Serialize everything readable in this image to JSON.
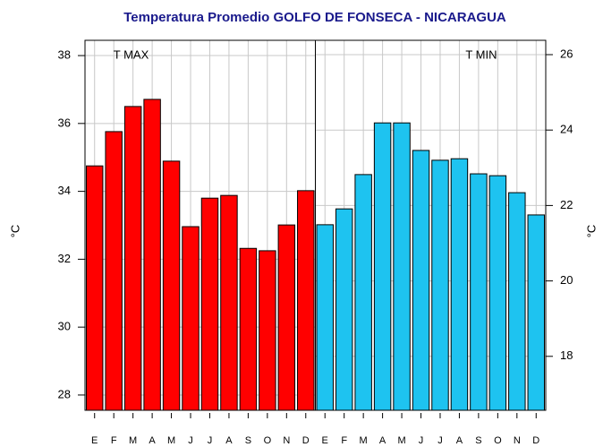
{
  "chart_data": {
    "type": "bar",
    "title": "Temperatura Promedio GOLFO DE FONSECA - NICARAGUA",
    "y_label": "°C",
    "y2_label": "°C",
    "grid": true,
    "panels": [
      {
        "label": "T MAX",
        "color": "#ff0000",
        "axis": "y",
        "categories": [
          "E",
          "F",
          "M",
          "A",
          "M",
          "J",
          "J",
          "A",
          "S",
          "O",
          "N",
          "D"
        ],
        "values": [
          34.75,
          35.76,
          36.5,
          36.71,
          34.89,
          32.96,
          33.8,
          33.88,
          32.32,
          32.25,
          33.01,
          34.02
        ],
        "ylim": [
          27.55,
          38.45
        ],
        "yticks": [
          28,
          30,
          32,
          34,
          36,
          38
        ]
      },
      {
        "label": "T MIN",
        "color": "#1ec3f0",
        "axis": "y2",
        "categories": [
          "E",
          "F",
          "M",
          "A",
          "M",
          "J",
          "J",
          "A",
          "S",
          "O",
          "N",
          "D"
        ],
        "values": [
          21.49,
          21.91,
          22.82,
          24.19,
          24.19,
          23.46,
          23.2,
          23.24,
          22.84,
          22.79,
          22.34,
          21.75
        ],
        "ylim": [
          16.57,
          26.38
        ],
        "yticks": [
          18,
          20,
          22,
          24,
          26
        ]
      }
    ]
  }
}
